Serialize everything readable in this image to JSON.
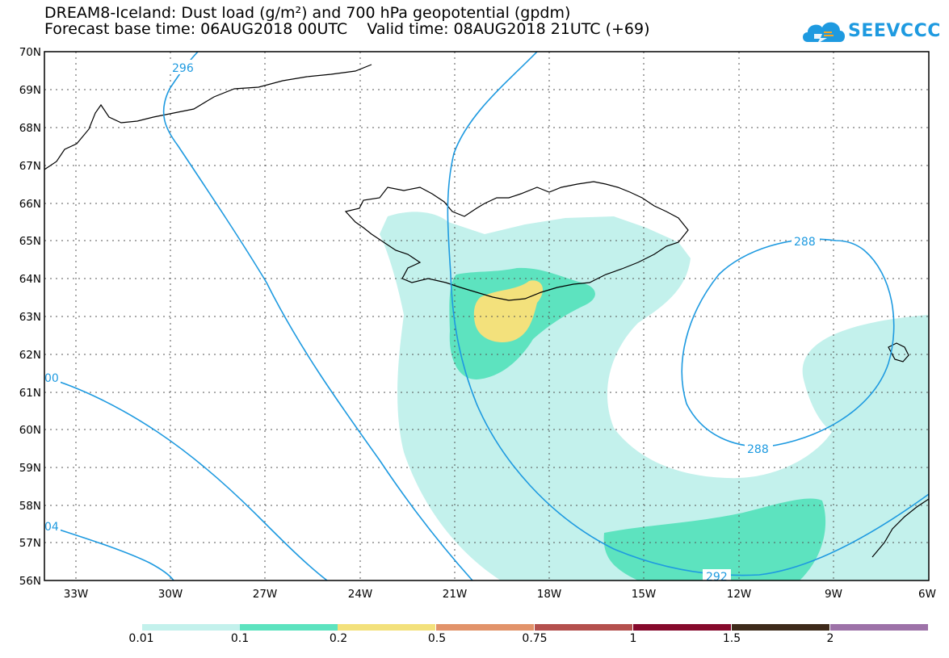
{
  "title": {
    "line1": "DREAM8-Iceland: Dust load (g/m²) and 700 hPa geopotential (gpdm)",
    "line2": "Forecast base time: 06AUG2018 00UTC    Valid time: 08AUG2018 21UTC (+69)"
  },
  "logo": {
    "text": "SEEVCCC",
    "icon": "cloud-icon"
  },
  "map": {
    "lat_labels": [
      "70N",
      "69N",
      "68N",
      "67N",
      "66N",
      "65N",
      "64N",
      "63N",
      "62N",
      "61N",
      "60N",
      "59N",
      "58N",
      "57N",
      "56N"
    ],
    "lon_labels": [
      "33W",
      "30W",
      "27W",
      "24W",
      "21W",
      "18W",
      "15W",
      "12W",
      "9W",
      "6W"
    ],
    "contour_labels": [
      "296",
      "288",
      "288",
      "292",
      "00",
      "04"
    ],
    "colors": {
      "contour": "#1e9ae0",
      "coast": "#000000",
      "grid": "#555555"
    }
  },
  "legend": {
    "colors": [
      "#c3f1ec",
      "#5de3bf",
      "#f3e17c",
      "#e2936a",
      "#b4504d",
      "#860a2c",
      "#3e2a1a",
      "#9d72a8"
    ],
    "labels": [
      "0.01",
      "0.1",
      "0.2",
      "0.5",
      "0.75",
      "1",
      "1.5",
      "2"
    ]
  }
}
